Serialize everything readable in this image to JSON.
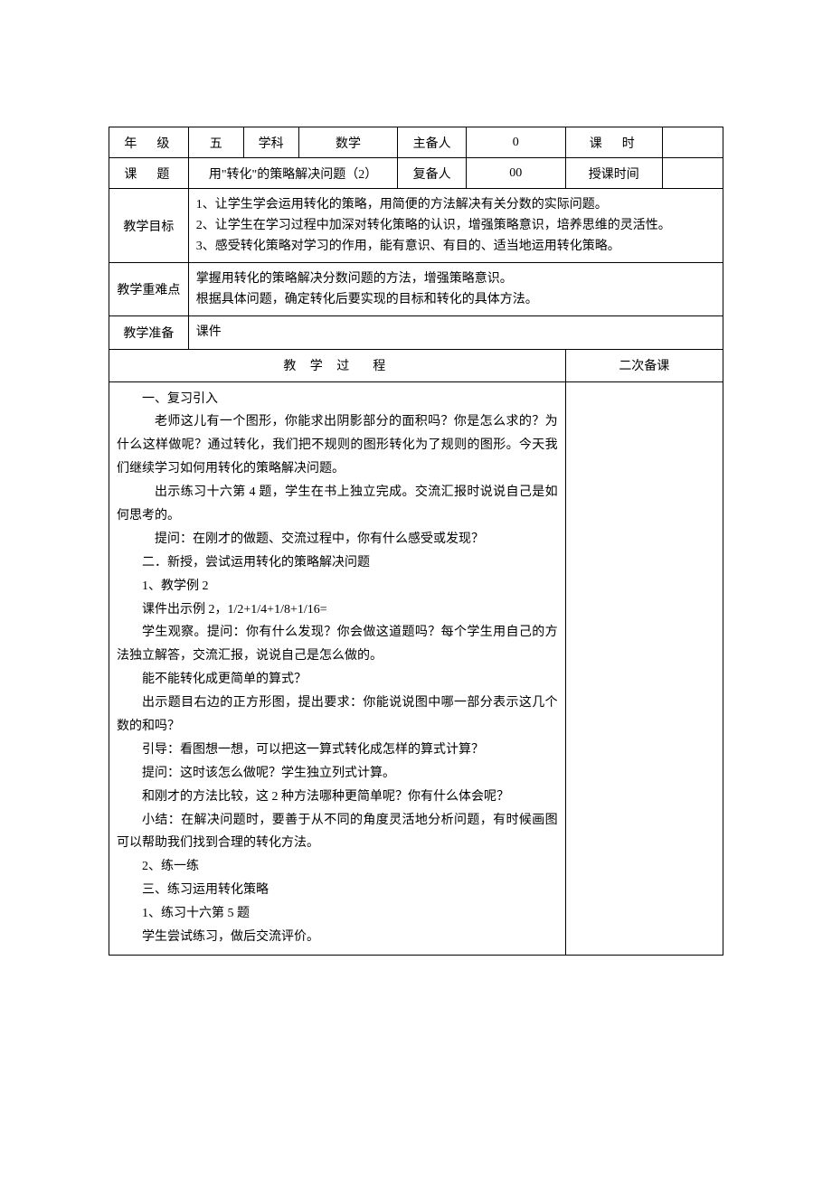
{
  "header": {
    "grade_label": "年　级",
    "grade_value": "五",
    "subject_label": "学科",
    "subject_value": "数学",
    "preparer_label": "主备人",
    "preparer_value": "0",
    "period_label": "课　时",
    "period_value": "",
    "topic_label": "课　题",
    "topic_value": "用\"转化\"的策略解决问题（2）",
    "reviewer_label": "复备人",
    "reviewer_value": "00",
    "teach_time_label": "授课时间",
    "teach_time_value": ""
  },
  "goals": {
    "label": "教学目标",
    "text": "1、让学生学会运用转化的策略，用简便的方法解决有关分数的实际问题。\n2、让学生在学习过程中加深对转化策略的认识，增强策略意识，培养思维的灵活性。\n3、感受转化策略对学习的作用，能有意识、有目的、适当地运用转化策略。"
  },
  "keypoints": {
    "label": "教学重难点",
    "text": "掌握用转化的策略解决分数问题的方法，增强策略意识。\n根据具体问题，确定转化后要实现的目标和转化的具体方法。"
  },
  "prep": {
    "label": "教学准备",
    "value": "课件"
  },
  "process": {
    "header": "教 学 过　程",
    "secondary_header": "二次备课"
  },
  "body": {
    "lines": [
      {
        "cls": "indent-1",
        "text": "一、复习引入"
      },
      {
        "cls": "indent-2",
        "text": "老师这儿有一个图形，你能求出阴影部分的面积吗？你是怎么求的？为什么这样做呢？通过转化，我们把不规则的图形转化为了规则的图形。今天我们继续学习如何用转化的策略解决问题。"
      },
      {
        "cls": "indent-2",
        "text": "出示练习十六第 4 题，学生在书上独立完成。交流汇报时说说自己是如何思考的。"
      },
      {
        "cls": "indent-2",
        "text": "提问：在刚才的做题、交流过程中，你有什么感受或发现？"
      },
      {
        "cls": "indent-1",
        "text": "二．新授，尝试运用转化的策略解决问题"
      },
      {
        "cls": "indent-1",
        "text": "1、教学例 2"
      },
      {
        "cls": "indent-1",
        "text": "课件出示例 2，1/2+1/4+1/8+1/16="
      },
      {
        "cls": "indent-1",
        "text": "学生观察。提问：你有什么发现？你会做这道题吗？每个学生用自己的方法独立解答，交流汇报，说说自己是怎么做的。"
      },
      {
        "cls": "indent-1",
        "text": "能不能转化成更简单的算式？"
      },
      {
        "cls": "indent-1",
        "text": "出示题目右边的正方形图，提出要求：你能说说图中哪一部分表示这几个数的和吗？"
      },
      {
        "cls": "indent-1",
        "text": "引导：看图想一想，可以把这一算式转化成怎样的算式计算？"
      },
      {
        "cls": "indent-1",
        "text": "提问：这时该怎么做呢？学生独立列式计算。"
      },
      {
        "cls": "indent-1",
        "text": "和刚才的方法比较，这 2 种方法哪种更简单呢？你有什么体会呢？"
      },
      {
        "cls": "indent-1",
        "text": "小结：在解决问题时，要善于从不同的角度灵活地分析问题，有时候画图可以帮助我们找到合理的转化方法。"
      },
      {
        "cls": "indent-1",
        "text": "2、练一练"
      },
      {
        "cls": "indent-1",
        "text": "三、练习运用转化策略"
      },
      {
        "cls": "indent-1",
        "text": "1、练习十六第 5 题"
      },
      {
        "cls": "indent-1",
        "text": "学生尝试练习，做后交流评价。"
      }
    ]
  },
  "style": {
    "border_color": "#000000",
    "background_color": "#ffffff",
    "base_fontsize": 14,
    "line_height": 1.85
  }
}
